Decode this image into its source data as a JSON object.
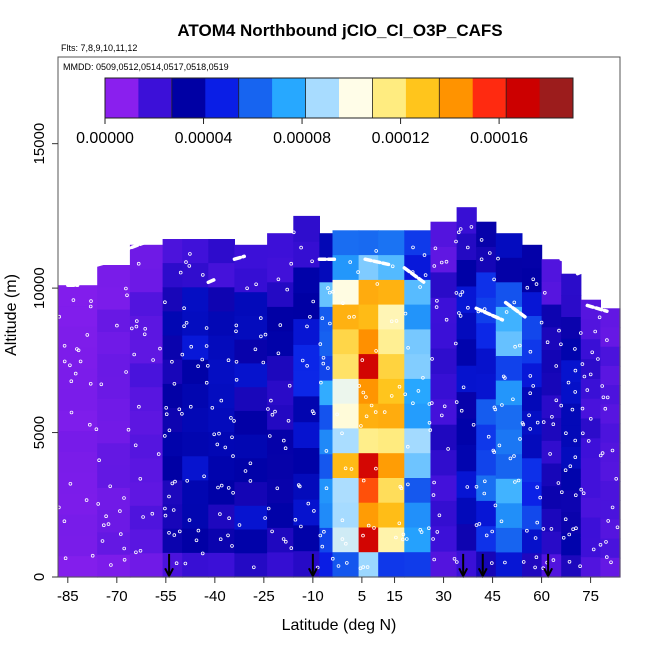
{
  "chart_data": {
    "type": "heatmap",
    "title": "ATOM4 Northbound jClO_Cl_O3P_CAFS",
    "flights_label": "Flts: 7,8,9,10,11,12",
    "dates_label": "MMDD: 0509,0512,0514,0517,0518,0519",
    "xlabel": "Latitude (deg N)",
    "ylabel": "Altitude (m)",
    "xlim": [
      -88,
      84
    ],
    "ylim": [
      0,
      18000
    ],
    "x_ticks": [
      -85,
      -70,
      -55,
      -40,
      -25,
      -10,
      5,
      15,
      30,
      45,
      60,
      75
    ],
    "y_ticks": [
      0,
      5000,
      10000,
      15000
    ],
    "colorbar": {
      "min": 0,
      "max": 0.00019,
      "tick_values": [
        0,
        4e-05,
        8e-05,
        0.00012,
        0.00016
      ],
      "tick_labels": [
        "0.00000",
        "0.00004",
        "0.00008",
        "0.00012",
        "0.00016"
      ],
      "colors": [
        "#8a1fee",
        "#3c10d8",
        "#0000a4",
        "#0a1ee6",
        "#1764f0",
        "#27a8ff",
        "#a8dcff",
        "#fffde8",
        "#ffec80",
        "#ffc51c",
        "#ff9300",
        "#ff2a10",
        "#cc0000",
        "#9c1c1c"
      ]
    },
    "columns": [
      {
        "x0": -88,
        "x1": -76,
        "top": 10100,
        "bottom": 0
      },
      {
        "x0": -76,
        "x1": -66,
        "top": 10800,
        "bottom": 0
      },
      {
        "x0": -66,
        "x1": -56,
        "top": 11500,
        "bottom": 0
      },
      {
        "x0": -56,
        "x1": -50,
        "top": 11700,
        "bottom": 0
      },
      {
        "x0": -50,
        "x1": -42,
        "top": 11700,
        "bottom": 0
      },
      {
        "x0": -42,
        "x1": -34,
        "top": 11700,
        "bottom": 0
      },
      {
        "x0": -34,
        "x1": -24,
        "top": 11500,
        "bottom": 0
      },
      {
        "x0": -24,
        "x1": -16,
        "top": 11900,
        "bottom": 0
      },
      {
        "x0": -16,
        "x1": -8,
        "top": 12500,
        "bottom": 0
      },
      {
        "x0": -8,
        "x1": -4,
        "top": 11900,
        "bottom": 0
      },
      {
        "x0": -4,
        "x1": 4,
        "top": 12000,
        "bottom": 0
      },
      {
        "x0": 4,
        "x1": 10,
        "top": 12000,
        "bottom": 0
      },
      {
        "x0": 10,
        "x1": 18,
        "top": 12000,
        "bottom": 0
      },
      {
        "x0": 18,
        "x1": 26,
        "top": 12000,
        "bottom": 0
      },
      {
        "x0": 26,
        "x1": 34,
        "top": 12300,
        "bottom": 0
      },
      {
        "x0": 34,
        "x1": 40,
        "top": 12800,
        "bottom": 0
      },
      {
        "x0": 40,
        "x1": 46,
        "top": 12300,
        "bottom": 0
      },
      {
        "x0": 46,
        "x1": 54,
        "top": 11900,
        "bottom": 0
      },
      {
        "x0": 54,
        "x1": 60,
        "top": 11500,
        "bottom": 0
      },
      {
        "x0": 60,
        "x1": 66,
        "top": 11000,
        "bottom": 0
      },
      {
        "x0": 66,
        "x1": 72,
        "top": 10500,
        "bottom": 0
      },
      {
        "x0": 72,
        "x1": 78,
        "top": 9600,
        "bottom": 0
      },
      {
        "x0": 78,
        "x1": 84,
        "top": 9300,
        "bottom": 0
      }
    ],
    "column_values": [
      3e-06,
      6e-06,
      1e-05,
      2.8e-05,
      3.4e-05,
      3e-05,
      3.2e-05,
      2.6e-05,
      4e-05,
      7.2e-05,
      0.000116,
      0.000148,
      0.000118,
      7.5e-05,
      1.8e-05,
      3.4e-05,
      5.2e-05,
      7e-05,
      4.4e-05,
      2.2e-05,
      3.4e-05,
      1.6e-05,
      1.2e-05
    ],
    "arrows_x": [
      -54,
      -10,
      36,
      42,
      62
    ]
  }
}
